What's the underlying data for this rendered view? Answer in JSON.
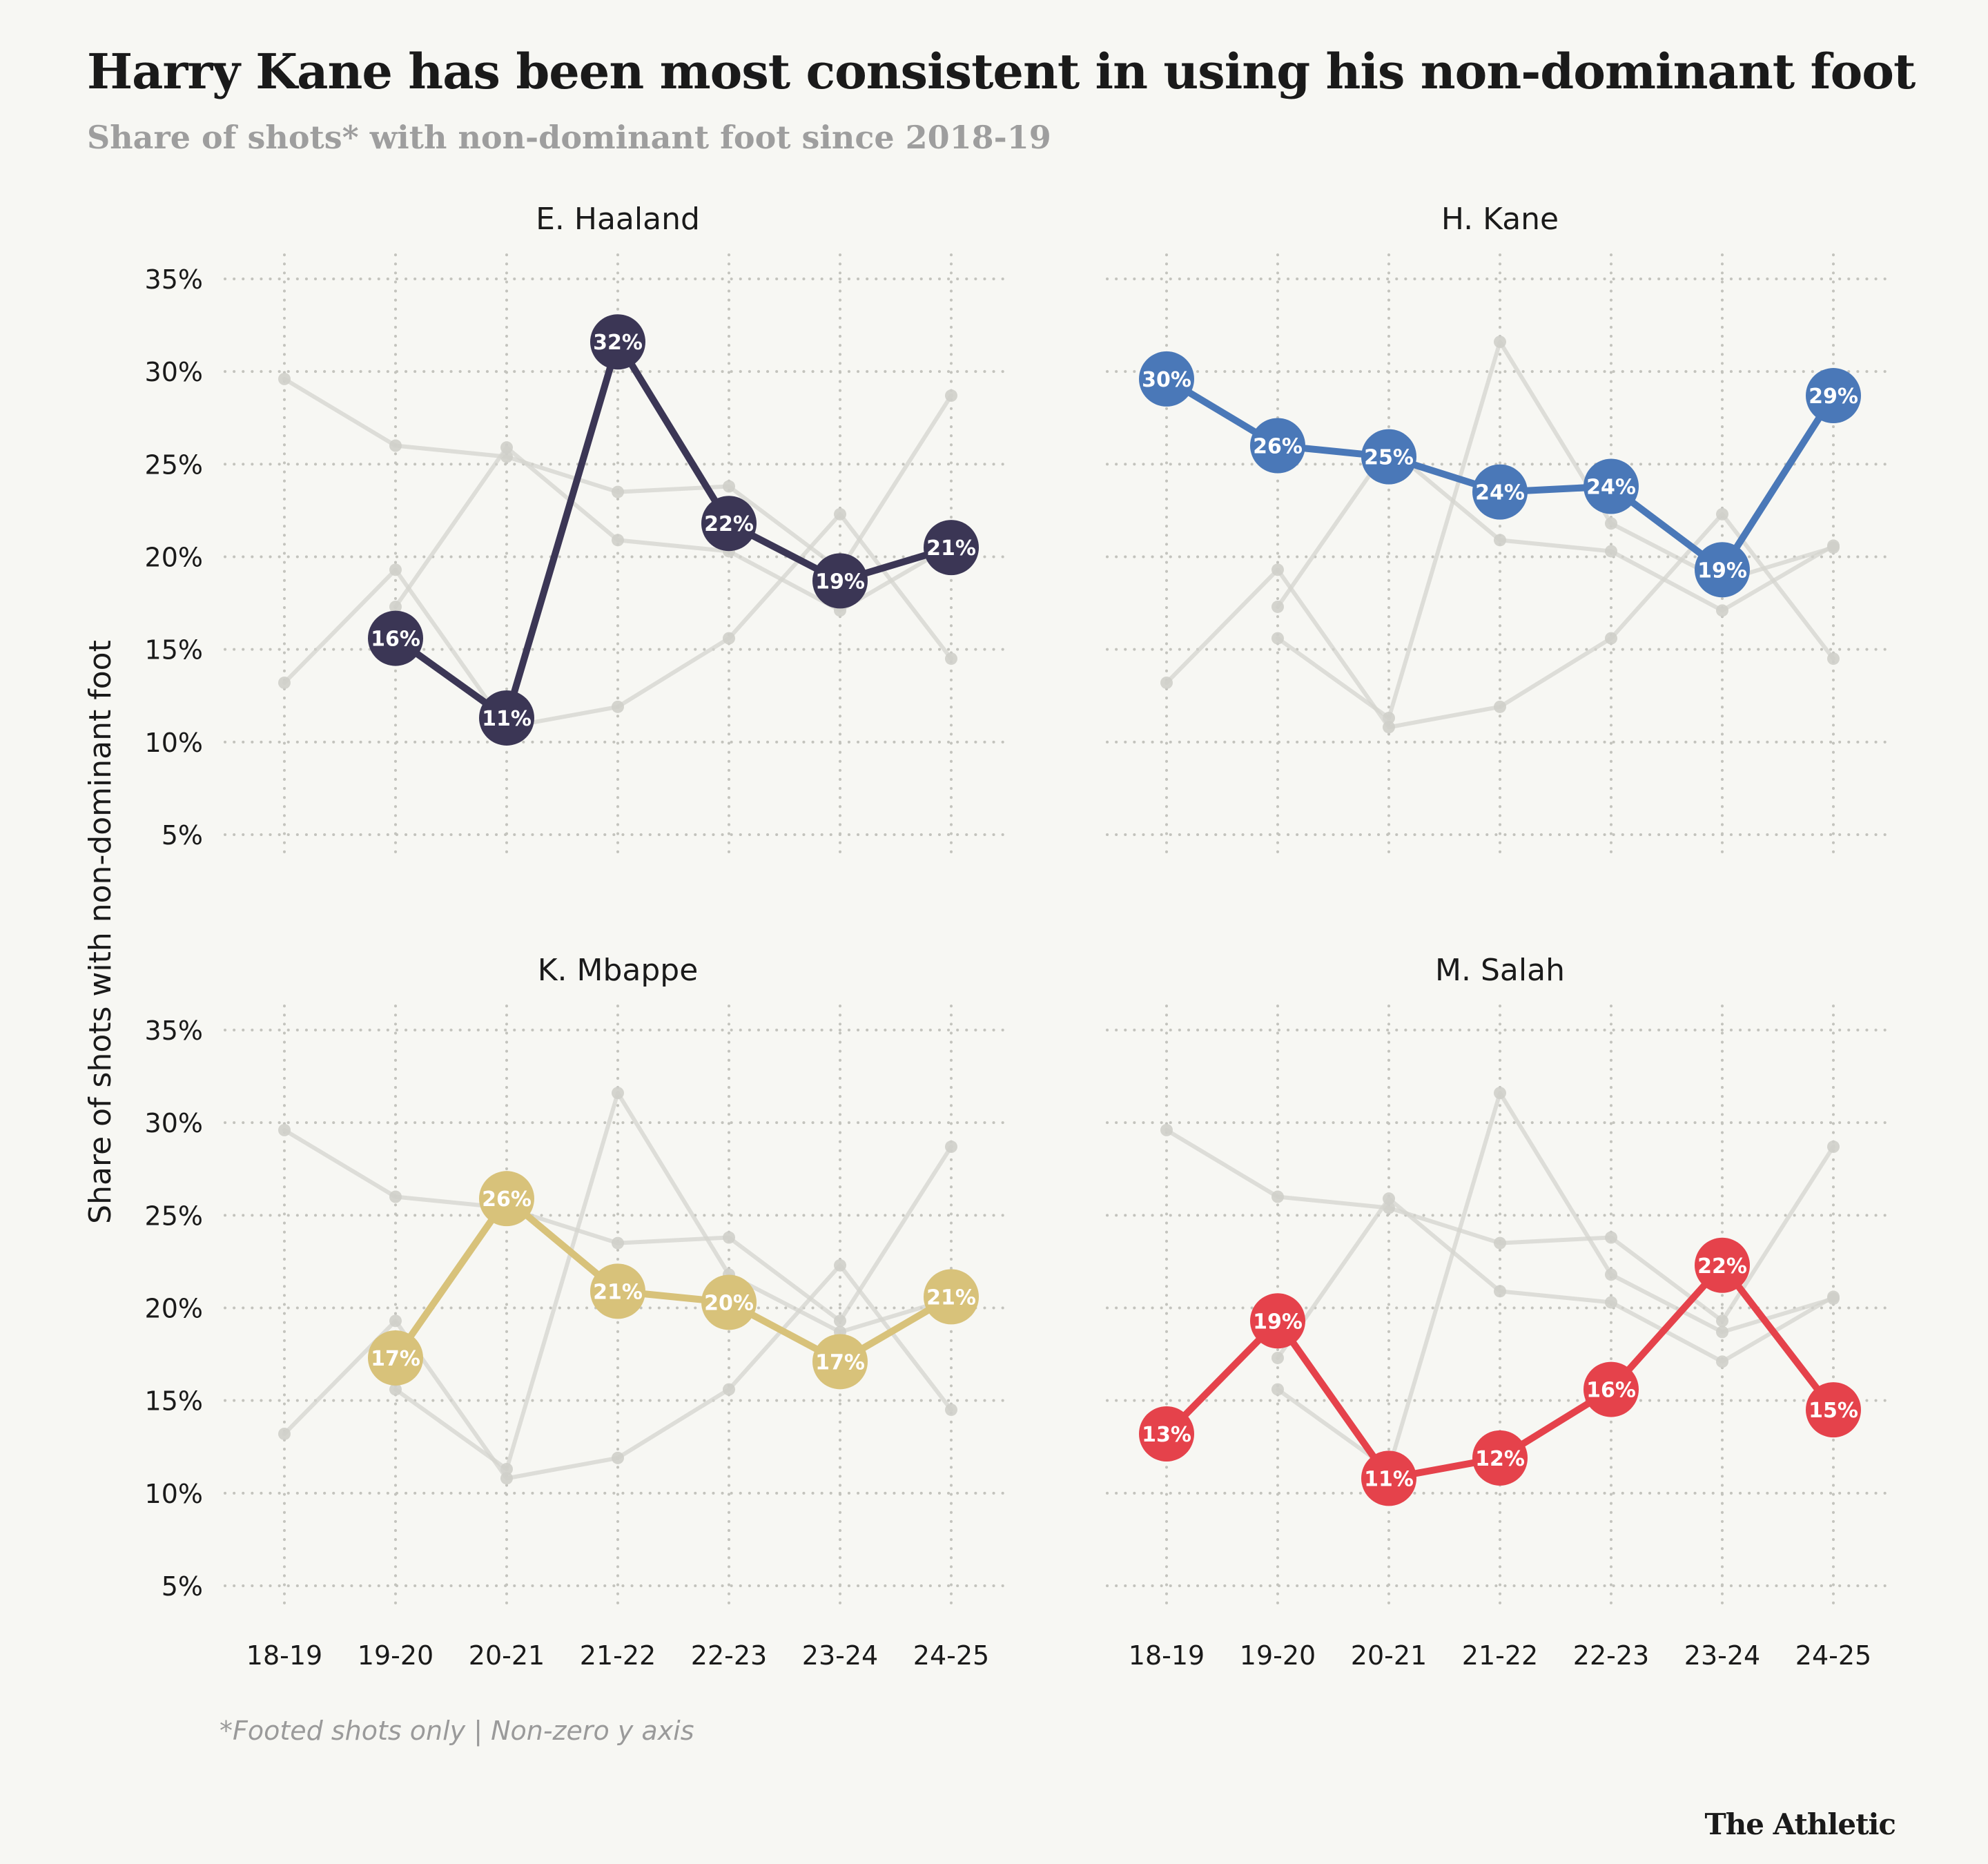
{
  "title": "Harry Kane has been most consistent in using his non-dominant foot",
  "subtitle": "Share of shots* with non-dominant foot since 2018-19",
  "footnote": "*Footed shots only | Non-zero y axis",
  "brand": "The Athletic",
  "chart_data": {
    "type": "line",
    "ylabel": "Share of shots with non-dominant foot",
    "categories": [
      "18-19",
      "19-20",
      "20-21",
      "21-22",
      "22-23",
      "23-24",
      "24-25"
    ],
    "yticks": [
      "5%",
      "10%",
      "15%",
      "20%",
      "25%",
      "30%",
      "35%"
    ],
    "ylim": [
      3,
      36
    ],
    "ytick_values": [
      5,
      10,
      15,
      20,
      25,
      30,
      35
    ],
    "series": [
      {
        "name": "E. Haaland",
        "color": "#3b3655",
        "values": [
          null,
          15.6,
          11.3,
          31.6,
          21.8,
          18.7,
          20.5
        ],
        "labels": [
          "",
          "16%",
          "11%",
          "32%",
          "22%",
          "19%",
          "21%"
        ]
      },
      {
        "name": "H. Kane",
        "color": "#4a78b8",
        "values": [
          29.6,
          26.0,
          25.4,
          23.5,
          23.8,
          19.3,
          28.7
        ],
        "labels": [
          "30%",
          "26%",
          "25%",
          "24%",
          "24%",
          "19%",
          "29%"
        ]
      },
      {
        "name": "K. Mbappe",
        "color": "#d8c27a",
        "values": [
          null,
          17.3,
          25.9,
          20.9,
          20.3,
          17.1,
          20.6
        ],
        "labels": [
          "",
          "17%",
          "26%",
          "21%",
          "20%",
          "17%",
          "21%"
        ]
      },
      {
        "name": "M. Salah",
        "color": "#e5424b",
        "values": [
          13.2,
          19.3,
          10.8,
          11.9,
          15.6,
          22.3,
          14.5
        ],
        "labels": [
          "13%",
          "19%",
          "11%",
          "12%",
          "16%",
          "22%",
          "15%"
        ]
      }
    ],
    "background_series_color": "#d4d4cf"
  }
}
